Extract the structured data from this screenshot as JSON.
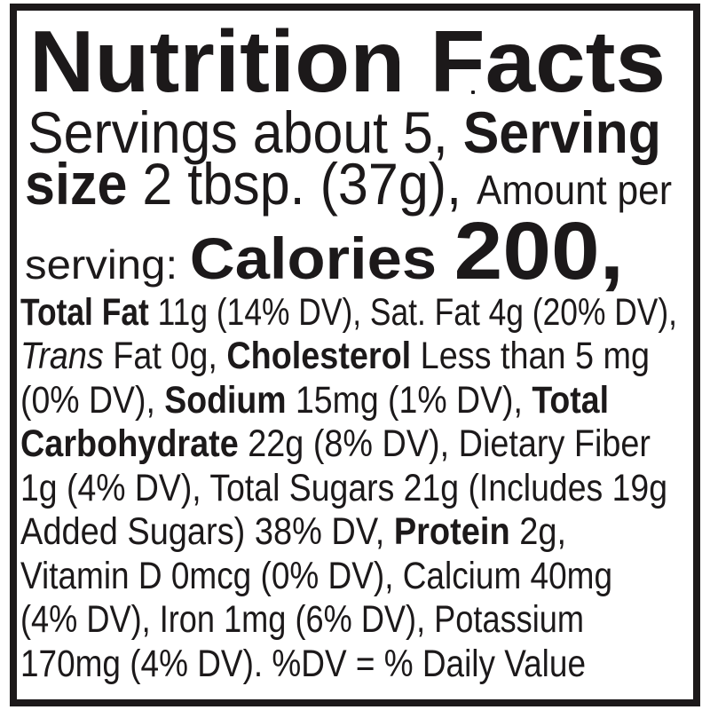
{
  "label": {
    "title": "Nutrition Facts",
    "ink_color": "#1c191a",
    "paper_color": "#ffffff",
    "footnote": "%DV = % Daily Value",
    "lines": [
      {
        "name": "title-line",
        "runs": [
          {
            "t": "Nutrition Facts",
            "s": "title"
          }
        ]
      },
      {
        "name": "servings-line",
        "runs": [
          {
            "t": "Servings about 5, ",
            "s": "lg"
          },
          {
            "t": "Serving",
            "s": "lgb"
          }
        ]
      },
      {
        "name": "serving-size-line",
        "runs": [
          {
            "t": "size",
            "s": "lgb"
          },
          {
            "t": " 2 tbsp. (37g), ",
            "s": "lg"
          },
          {
            "t": "Amount per",
            "s": "md"
          }
        ]
      },
      {
        "name": "calories-line",
        "runs": [
          {
            "t": "serving: ",
            "s": "md"
          },
          {
            "t": "Calories ",
            "s": "xlb"
          },
          {
            "t": "200,",
            "s": "xxlb"
          }
        ]
      },
      {
        "name": "nutrient-line-fat",
        "runs": [
          {
            "t": "Total Fat",
            "s": "b"
          },
          {
            "t": " 11g (14% DV), Sat. Fat 4g (20% DV),",
            "s": "r"
          }
        ]
      },
      {
        "name": "nutrient-line-trans-cholesterol",
        "runs": [
          {
            "t": "Trans",
            "s": "i"
          },
          {
            "t": " Fat 0g, ",
            "s": "r"
          },
          {
            "t": "Cholesterol",
            "s": "b"
          },
          {
            "t": " Less than 5 mg",
            "s": "r"
          }
        ]
      },
      {
        "name": "nutrient-line-sodium",
        "runs": [
          {
            "t": "(0% DV), ",
            "s": "r"
          },
          {
            "t": "Sodium",
            "s": "b"
          },
          {
            "t": " 15mg (1% DV), ",
            "s": "r"
          },
          {
            "t": "Total",
            "s": "b"
          }
        ]
      },
      {
        "name": "nutrient-line-carbohydrate",
        "runs": [
          {
            "t": "Carbohydrate",
            "s": "b"
          },
          {
            "t": " 22g (8% DV), Dietary Fiber",
            "s": "r"
          }
        ]
      },
      {
        "name": "nutrient-line-fiber-sugars",
        "runs": [
          {
            "t": "1g (4% DV), Total Sugars 21g (Includes 19g",
            "s": "r"
          }
        ]
      },
      {
        "name": "nutrient-line-added-sugars-protein",
        "runs": [
          {
            "t": "Added Sugars) 38% DV, ",
            "s": "r"
          },
          {
            "t": "Protein",
            "s": "b"
          },
          {
            "t": " 2g,",
            "s": "r"
          }
        ]
      },
      {
        "name": "nutrient-line-vitamind-calcium",
        "runs": [
          {
            "t": "Vitamin D 0mcg (0% DV), Calcium 40mg",
            "s": "r"
          }
        ]
      },
      {
        "name": "nutrient-line-iron-potassium",
        "runs": [
          {
            "t": "(4% DV), Iron 1mg (6% DV), Potassium",
            "s": "r"
          }
        ]
      },
      {
        "name": "nutrient-line-potassium-footnote",
        "runs": [
          {
            "t": "170mg (4% DV). %DV = % Daily Value",
            "s": "r"
          }
        ]
      }
    ]
  }
}
